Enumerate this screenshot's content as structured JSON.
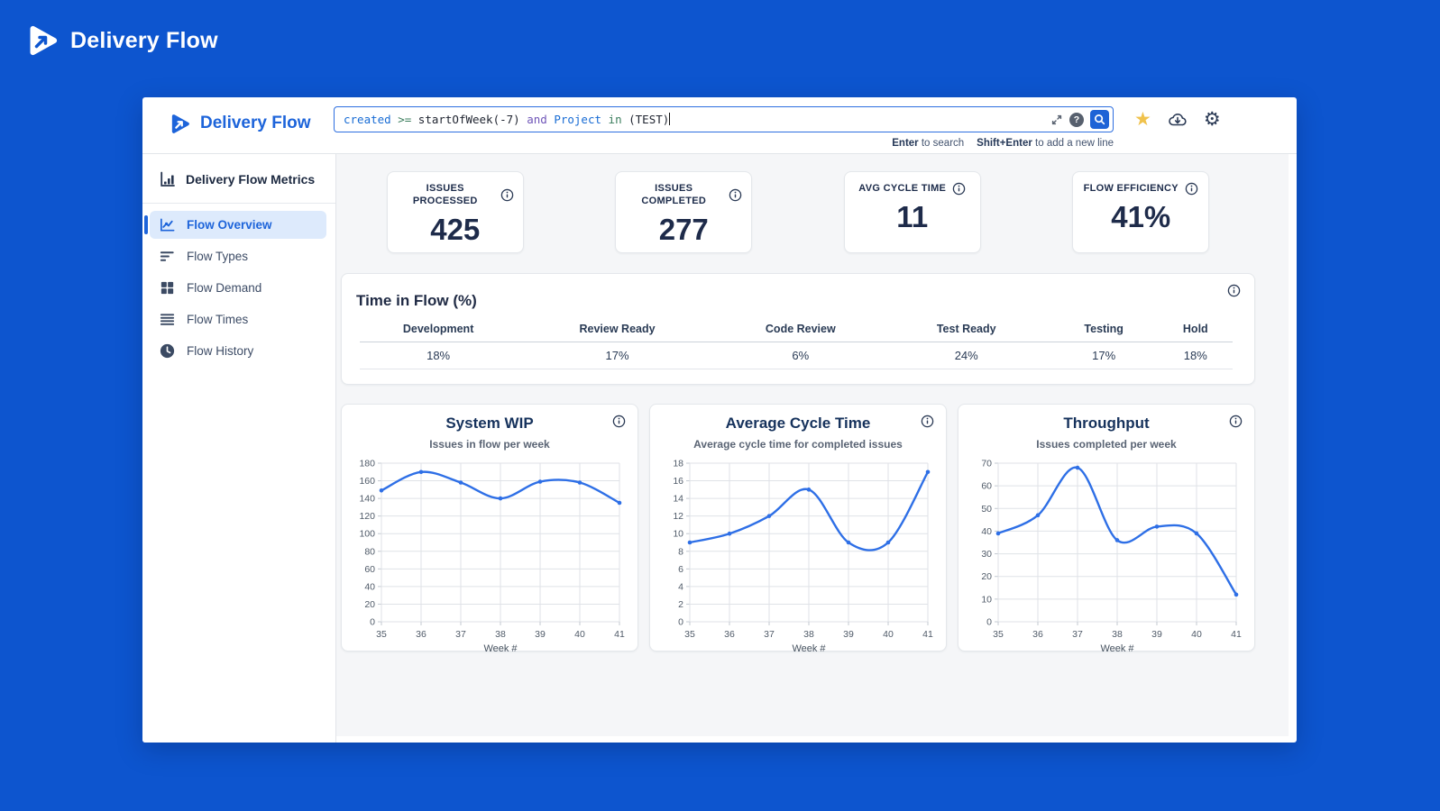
{
  "colors": {
    "accent": "#1d64da",
    "outer_bg": "#0d55cf",
    "star": "#f0c24c",
    "chart_line": "#2e6fe6"
  },
  "app": {
    "brand": "Delivery Flow"
  },
  "header": {
    "brand": "Delivery Flow",
    "query": {
      "tokens": [
        {
          "text": "created ",
          "color": "#176bd4"
        },
        {
          "text": ">= ",
          "color": "#3a7d5c"
        },
        {
          "text": "startOfWeek(-7) ",
          "color": "#1f2430"
        },
        {
          "text": "and ",
          "color": "#6f55b8"
        },
        {
          "text": "Project ",
          "color": "#176bd4"
        },
        {
          "text": "in ",
          "color": "#3a7d5c"
        },
        {
          "text": "(TEST)",
          "color": "#1f2430"
        }
      ]
    },
    "hints": {
      "enter_key": "Enter",
      "enter_text": " to search",
      "shift_key": "Shift+Enter",
      "shift_text": " to add a new line"
    }
  },
  "sidebar": {
    "title": "Delivery Flow Metrics",
    "items": [
      {
        "label": "Flow Overview",
        "icon": "line-chart-icon",
        "selected": true
      },
      {
        "label": "Flow Types",
        "icon": "sort-lines-icon",
        "selected": false
      },
      {
        "label": "Flow Demand",
        "icon": "grid-icon",
        "selected": false
      },
      {
        "label": "Flow Times",
        "icon": "rows-icon",
        "selected": false
      },
      {
        "label": "Flow History",
        "icon": "clock-icon",
        "selected": false
      }
    ]
  },
  "kpis": [
    {
      "label": "ISSUES PROCESSED",
      "value": "425"
    },
    {
      "label": "ISSUES COMPLETED",
      "value": "277"
    },
    {
      "label": "AVG CYCLE TIME",
      "value": "11"
    },
    {
      "label": "FLOW EFFICIENCY",
      "value": "41%"
    }
  ],
  "time_in_flow": {
    "title": "Time in Flow (%)",
    "columns": [
      "Development",
      "Review Ready",
      "Code Review",
      "Test Ready",
      "Testing",
      "Hold"
    ],
    "values": [
      "18%",
      "17%",
      "6%",
      "24%",
      "17%",
      "18%"
    ]
  },
  "chart_data": [
    {
      "type": "line",
      "title": "System WIP",
      "subtitle": "Issues in flow per week",
      "xlabel": "Week #",
      "x": [
        35,
        36,
        37,
        38,
        39,
        40,
        41
      ],
      "values": [
        149,
        170,
        158,
        140,
        159,
        158,
        135
      ],
      "ylim": [
        0,
        180
      ],
      "ytick": 20,
      "grid": true,
      "legend": false,
      "line_color": "#2e6fe6"
    },
    {
      "type": "line",
      "title": "Average Cycle Time",
      "subtitle": "Average cycle time for completed issues",
      "xlabel": "Week #",
      "x": [
        35,
        36,
        37,
        38,
        39,
        40,
        41
      ],
      "values": [
        9,
        10,
        12,
        15,
        9,
        9,
        17
      ],
      "ylim": [
        0,
        18
      ],
      "ytick": 2,
      "grid": true,
      "legend": false,
      "line_color": "#2e6fe6"
    },
    {
      "type": "line",
      "title": "Throughput",
      "subtitle": "Issues completed per week",
      "xlabel": "Week #",
      "x": [
        35,
        36,
        37,
        38,
        39,
        40,
        41
      ],
      "values": [
        39,
        47,
        68,
        36,
        42,
        39,
        12
      ],
      "ylim": [
        0,
        70
      ],
      "ytick": 10,
      "grid": true,
      "legend": false,
      "line_color": "#2e6fe6"
    }
  ]
}
